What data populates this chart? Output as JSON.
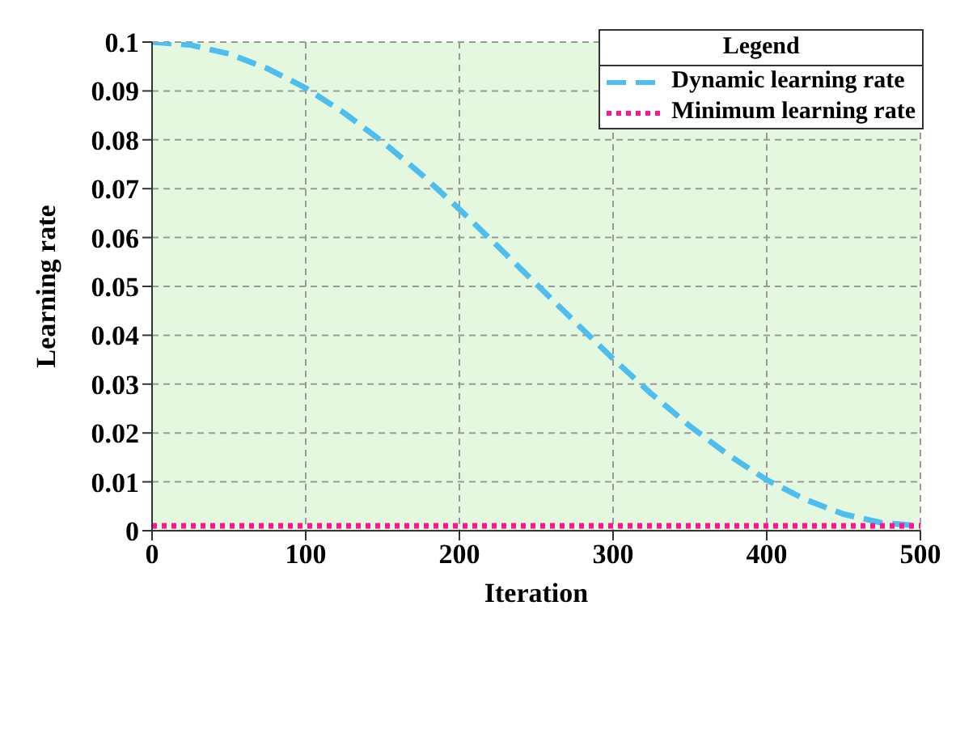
{
  "chart_data": {
    "type": "line",
    "xlabel": "Iteration",
    "ylabel": "Learning rate",
    "legend_title": "Legend",
    "legend": "top right",
    "grid": true,
    "x": [
      0,
      25,
      50,
      75,
      100,
      125,
      150,
      175,
      200,
      225,
      250,
      275,
      300,
      325,
      350,
      375,
      400,
      425,
      450,
      475,
      500
    ],
    "series": [
      {
        "name": "Dynamic learning rate",
        "color": "#4dbeee",
        "line_style": "dashed",
        "values": [
          0.1,
          0.0994,
          0.0976,
          0.0946,
          0.0906,
          0.0855,
          0.0796,
          0.073,
          0.0658,
          0.0582,
          0.0505,
          0.0428,
          0.0352,
          0.028,
          0.0214,
          0.0155,
          0.0104,
          0.0064,
          0.0034,
          0.0016,
          0.001
        ]
      },
      {
        "name": "Minimum learning rate",
        "color": "#ff1493",
        "line_style": "dotted",
        "values": [
          0.001,
          0.001,
          0.001,
          0.001,
          0.001,
          0.001,
          0.001,
          0.001,
          0.001,
          0.001,
          0.001,
          0.001,
          0.001,
          0.001,
          0.001,
          0.001,
          0.001,
          0.001,
          0.001,
          0.001,
          0.001
        ]
      }
    ],
    "xlim": [
      0,
      500
    ],
    "xticks": [
      0,
      100,
      200,
      300,
      400,
      500
    ],
    "ylim": [
      0,
      0.1
    ],
    "yticks": [
      0,
      0.01,
      0.02,
      0.03,
      0.04,
      0.05,
      0.06,
      0.07,
      0.08,
      0.09,
      0.1
    ]
  }
}
